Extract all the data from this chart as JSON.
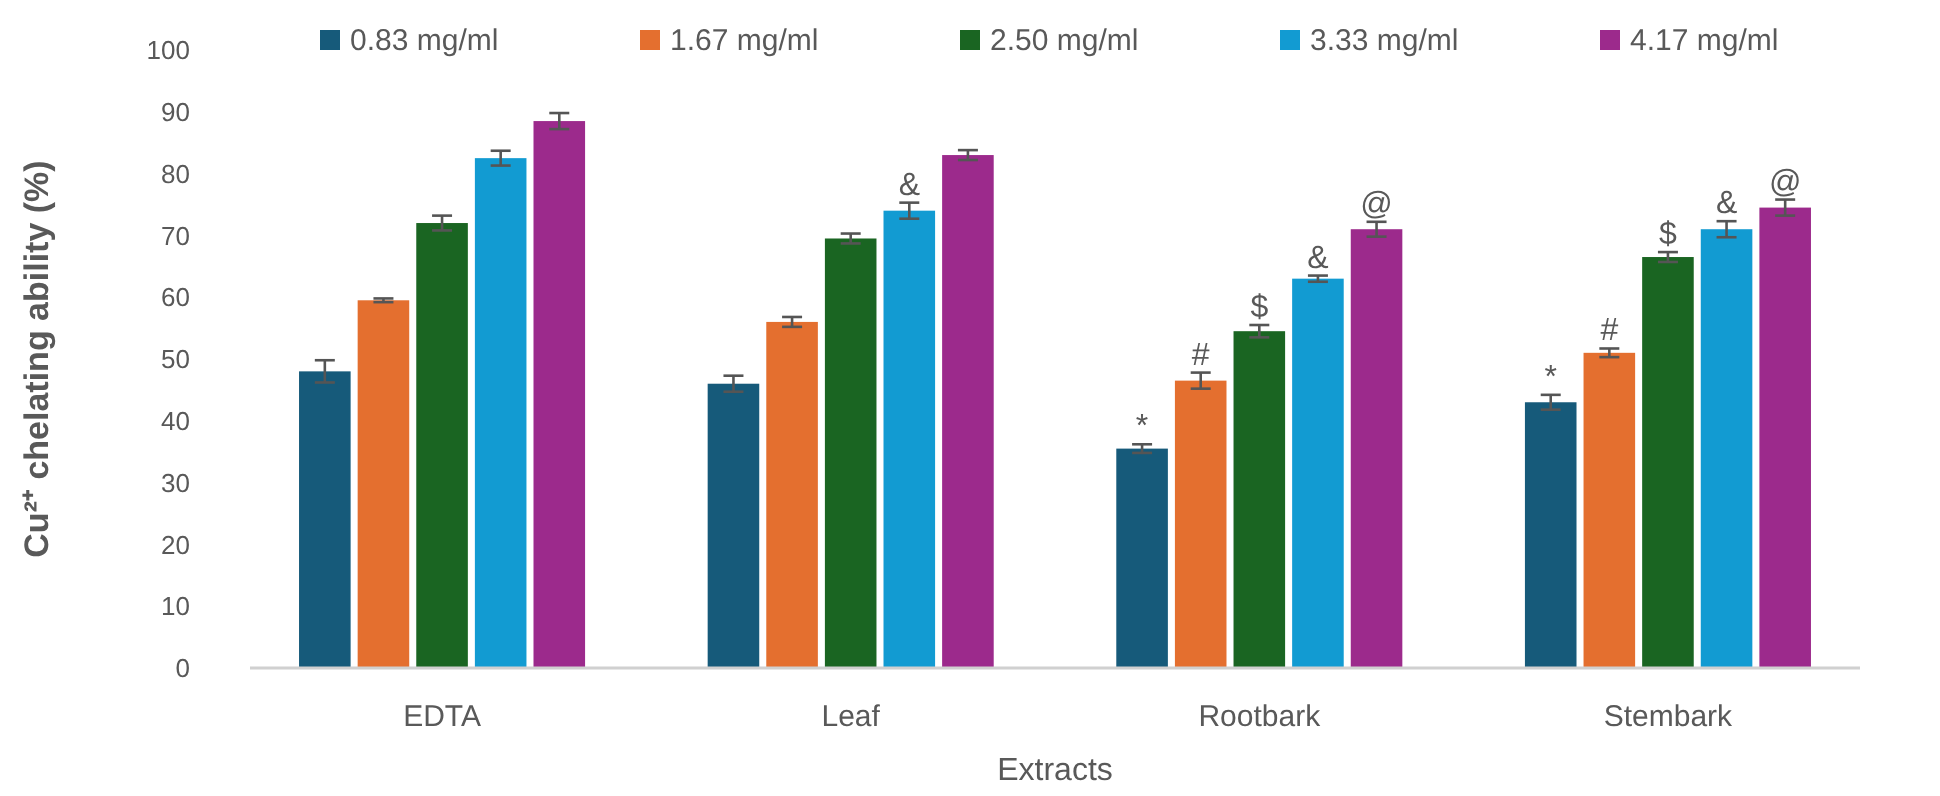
{
  "chart_data": {
    "type": "bar",
    "xlabel": "Extracts",
    "ylabel": "Cu²⁺ chelating ability (%)",
    "categories": [
      "EDTA",
      "Leaf",
      "Rootbark",
      "Stembark"
    ],
    "series": [
      {
        "name": "0.83 mg/ml",
        "color": "#165a7a",
        "values": [
          48,
          46,
          35.5,
          43
        ],
        "errors": [
          1.8,
          1.3,
          0.7,
          1.2
        ]
      },
      {
        "name": "1.67 mg/ml",
        "color": "#e46f2f",
        "values": [
          59.5,
          56,
          46.5,
          51
        ],
        "errors": [
          0.3,
          0.8,
          1.3,
          0.7
        ]
      },
      {
        "name": "2.50 mg/ml",
        "color": "#1a6522",
        "values": [
          72,
          69.5,
          54.5,
          66.5
        ],
        "errors": [
          1.2,
          0.8,
          1,
          0.8
        ]
      },
      {
        "name": "3.33 mg/ml",
        "color": "#129bd2",
        "values": [
          82.5,
          74,
          63,
          71
        ],
        "errors": [
          1.2,
          1.3,
          0.5,
          1.3
        ]
      },
      {
        "name": "4.17 mg/ml",
        "color": "#9c2a8c",
        "values": [
          88.5,
          83,
          71,
          74.5
        ],
        "errors": [
          1.3,
          0.8,
          1.2,
          1.3
        ]
      }
    ],
    "ylim": [
      0,
      100
    ],
    "yticks": [
      0,
      10,
      20,
      30,
      40,
      50,
      60,
      70,
      80,
      90,
      100
    ],
    "grid": false,
    "legend": "top",
    "annotations": [
      "&",
      "*",
      "#",
      "$",
      "&",
      "@",
      "*",
      "#",
      "$",
      "&",
      "@"
    ]
  }
}
